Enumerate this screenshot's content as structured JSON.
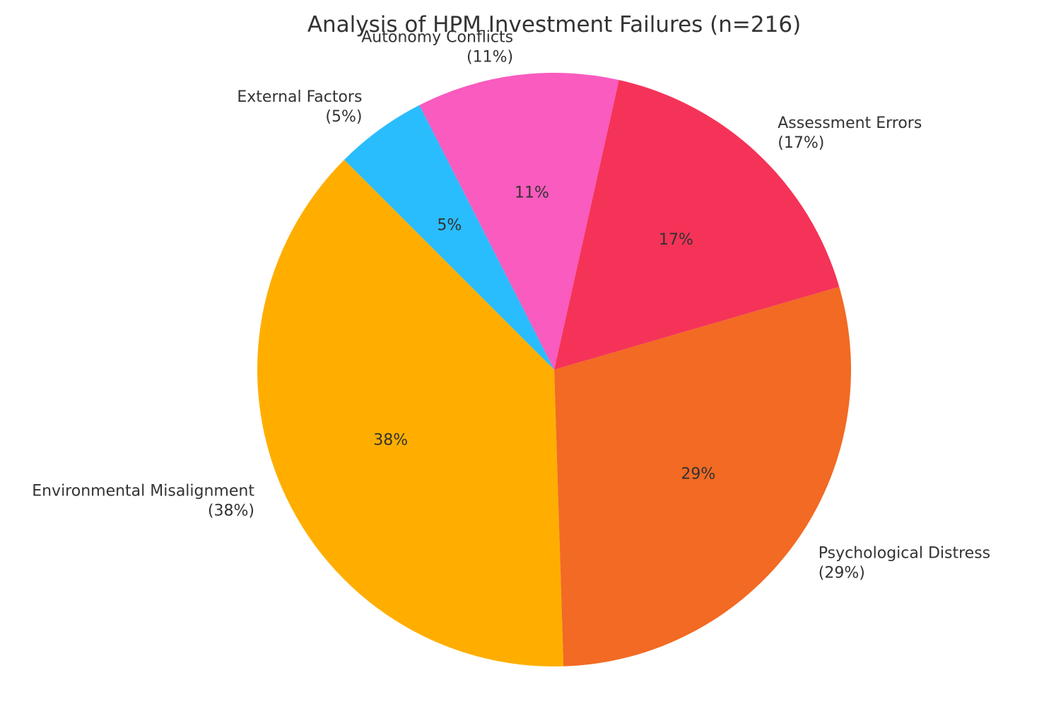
{
  "chart_data": {
    "type": "pie",
    "title": "Analysis of HPM Investment Failures (n=216)",
    "slices": [
      {
        "label": "Environmental Misalignment",
        "value": 38,
        "display_pct": "38%",
        "outer_pct": "(38%)",
        "color": "#FFAE00"
      },
      {
        "label": "Psychological Distress",
        "value": 29,
        "display_pct": "29%",
        "outer_pct": "(29%)",
        "color": "#F26A23"
      },
      {
        "label": "Assessment Errors",
        "value": 17,
        "display_pct": "17%",
        "outer_pct": "(17%)",
        "color": "#F53358"
      },
      {
        "label": "Autonomy Conflicts",
        "value": 11,
        "display_pct": "11%",
        "outer_pct": "(11%)",
        "color": "#F95BBE"
      },
      {
        "label": "External Factors",
        "value": 5,
        "display_pct": "5%",
        "outer_pct": "(5%)",
        "color": "#29BDFD"
      }
    ],
    "start_angle_deg": 135,
    "direction": "counterclockwise",
    "legend": "none"
  }
}
